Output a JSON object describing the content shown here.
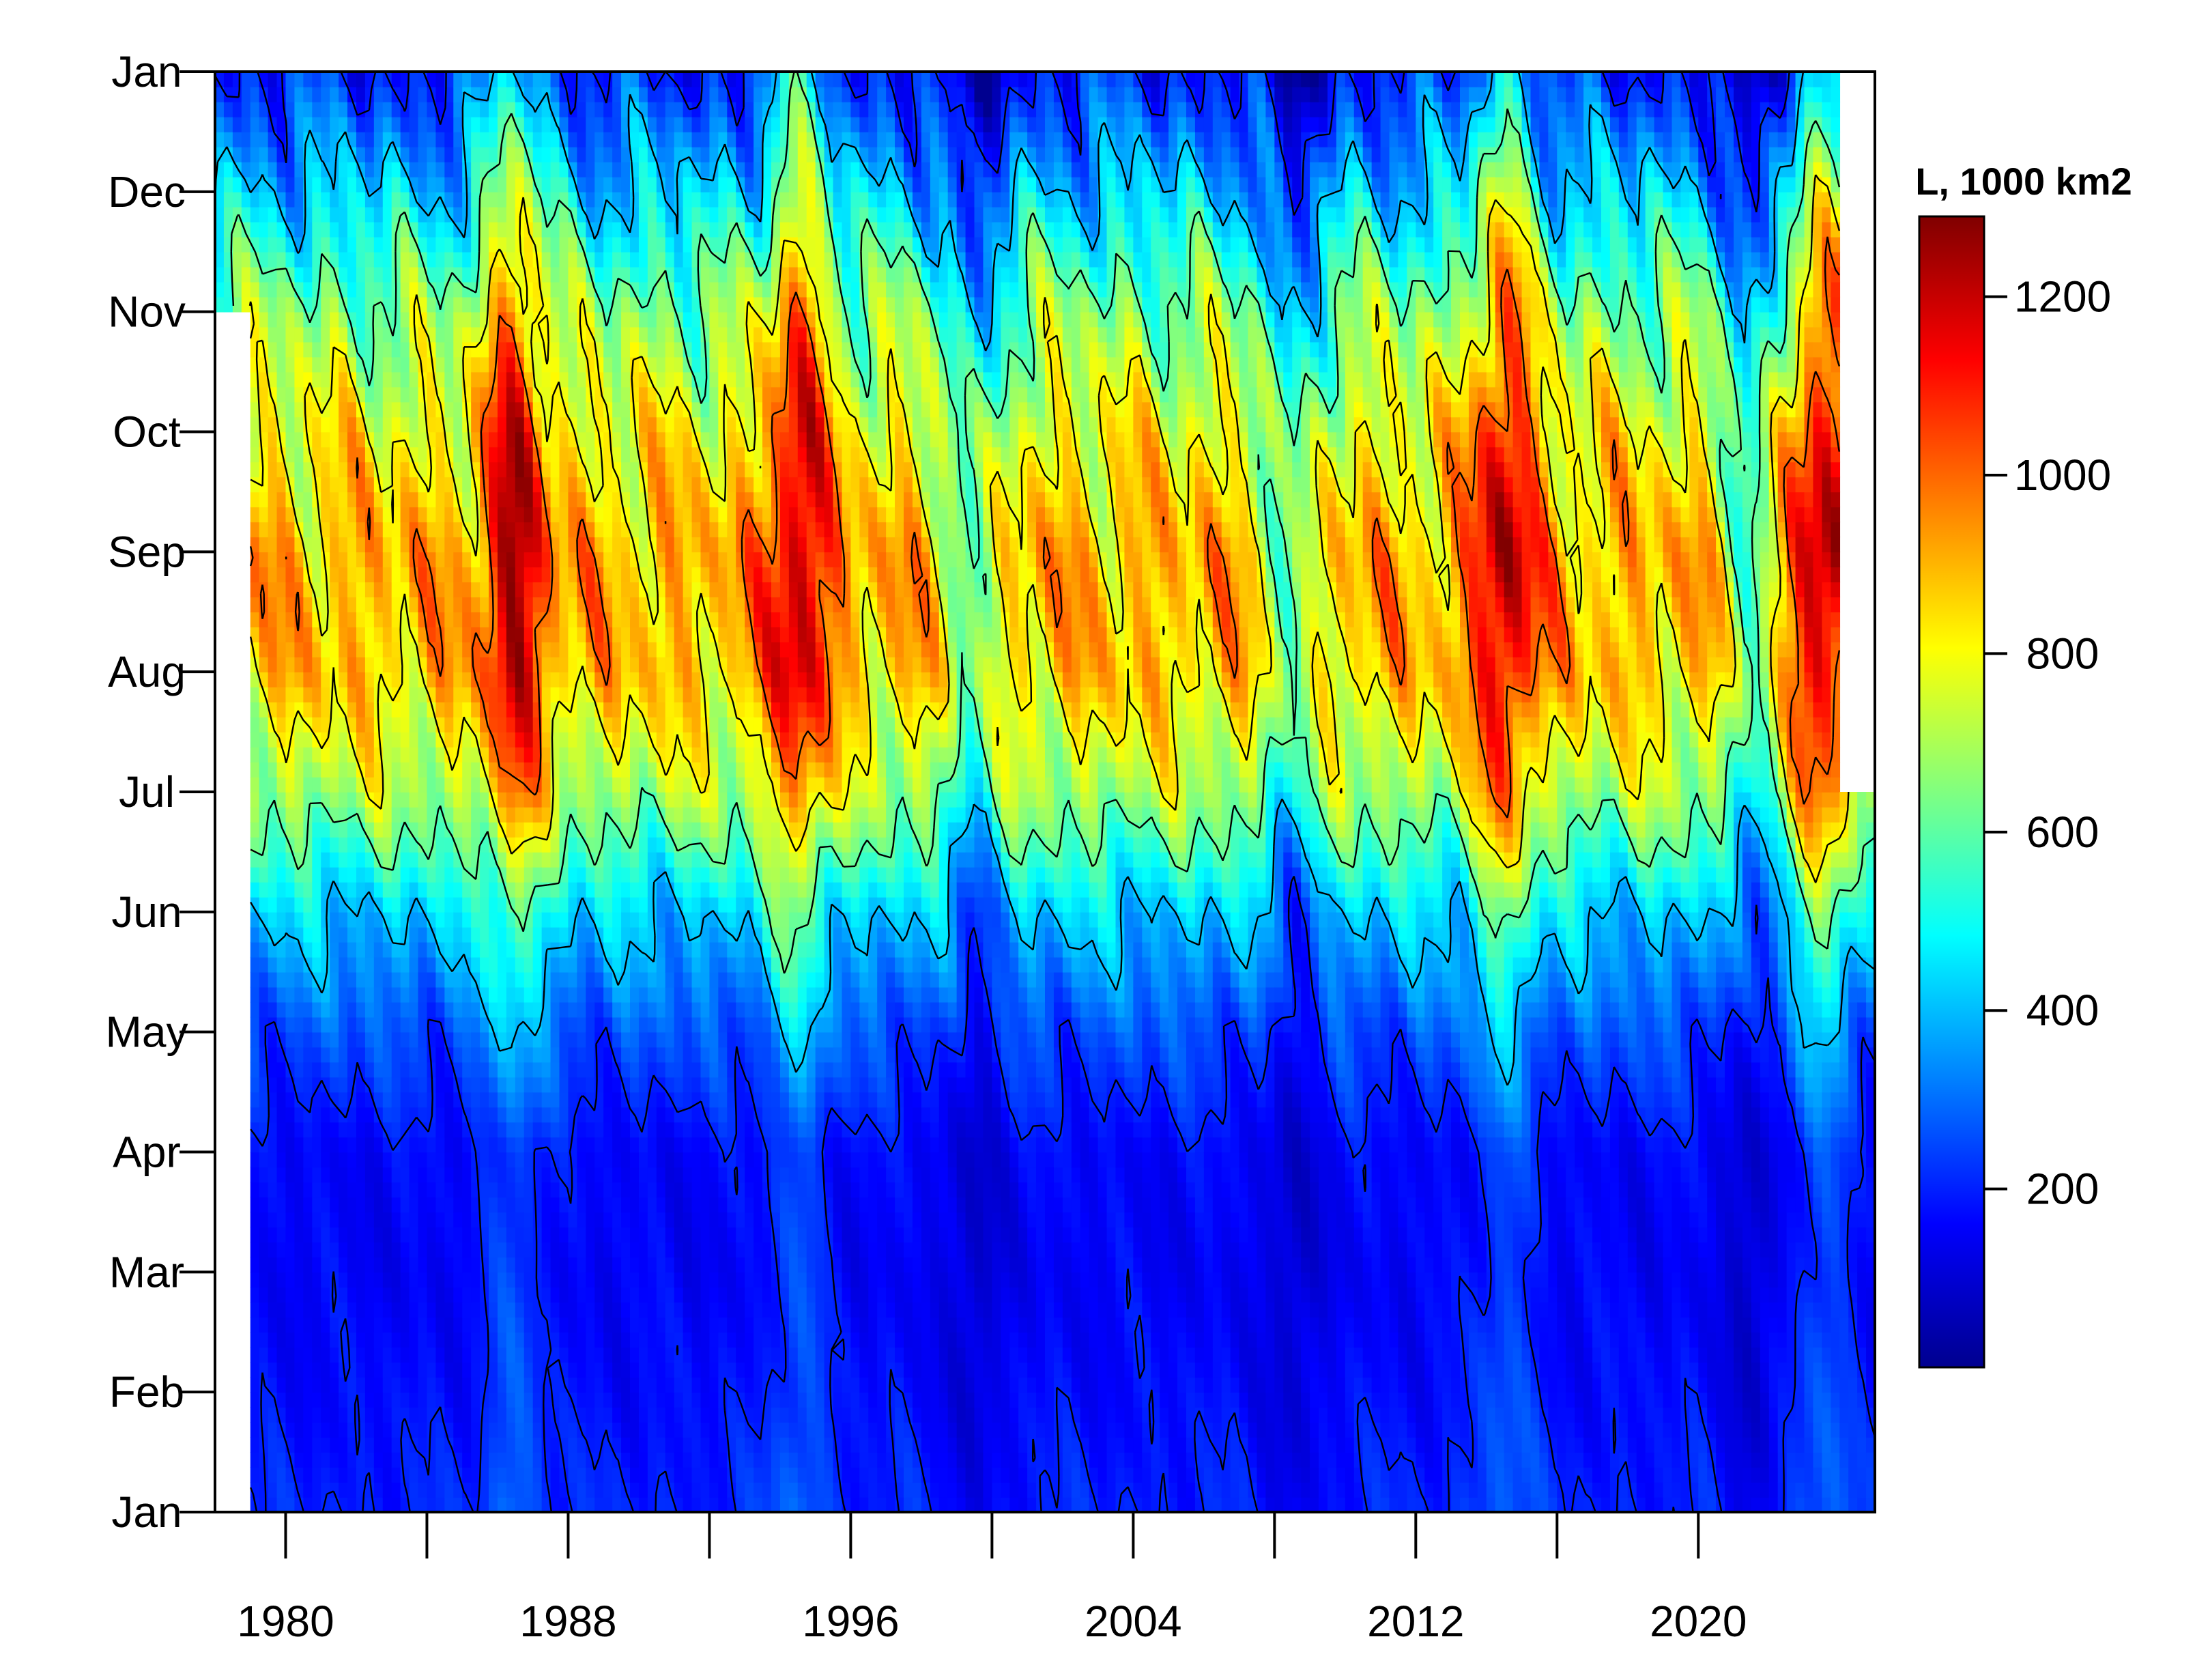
{
  "chart_data": {
    "type": "heatmap",
    "title": "",
    "xlabel": "",
    "ylabel": "",
    "x_range": [
      1978,
      2025
    ],
    "x_ticks": [
      1980,
      1984,
      1988,
      1992,
      1996,
      2000,
      2004,
      2008,
      2012,
      2016,
      2020
    ],
    "x_tick_labels": [
      "1980",
      "",
      "1988",
      "",
      "1996",
      "",
      "2004",
      "",
      "2012",
      "",
      "2020"
    ],
    "y_tick_labels": [
      "Jan",
      "Feb",
      "Mar",
      "Apr",
      "May",
      "Jun",
      "Jul",
      "Aug",
      "Sep",
      "Oct",
      "Nov",
      "Dec",
      "Jan"
    ],
    "colorbar": {
      "title": "L, 1000 km2",
      "range": [
        0,
        1290
      ],
      "ticks": [
        200,
        400,
        600,
        800,
        1000,
        1200
      ],
      "tick_labels": [
        "200",
        "400",
        "600",
        "800",
        "1000",
        "1200"
      ]
    },
    "contours": true,
    "seasonal_profile_by_month": {
      "months": [
        "Jan",
        "Feb",
        "Mar",
        "Apr",
        "May",
        "Jun",
        "Jul",
        "Aug",
        "Sep",
        "Oct",
        "Nov",
        "Dec"
      ],
      "typical_values": [
        200,
        170,
        150,
        160,
        260,
        420,
        700,
        880,
        900,
        800,
        650,
        420
      ]
    },
    "high_years": [
      1986,
      1994,
      2014,
      2023
    ],
    "low_years": [
      1999,
      2008,
      2021
    ],
    "record_start": {
      "year": 1978,
      "month": "Nov"
    },
    "record_end": {
      "year": 2024,
      "month": "Jul"
    },
    "palette": [
      "#00008F",
      "#0000FF",
      "#0080FF",
      "#00FFFF",
      "#80FF80",
      "#FFFF00",
      "#FF8000",
      "#FF0000",
      "#800000"
    ]
  }
}
